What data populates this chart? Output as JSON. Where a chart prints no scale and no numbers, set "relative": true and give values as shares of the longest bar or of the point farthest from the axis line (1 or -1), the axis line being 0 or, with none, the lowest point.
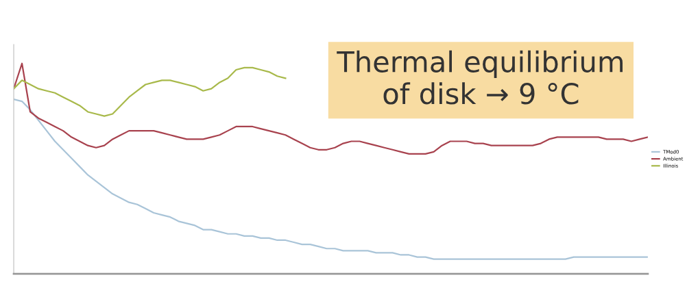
{
  "chart_data": {
    "type": "line",
    "relative": true,
    "legend": "right",
    "categories": [
      null,
      null,
      null,
      null,
      null,
      null,
      null,
      null,
      null,
      null,
      null,
      null,
      null,
      null,
      null,
      null,
      null,
      null,
      null,
      null,
      null,
      null,
      null,
      null,
      null,
      null,
      null,
      null,
      null,
      null,
      null,
      null,
      null,
      null,
      null,
      null,
      null,
      null,
      null,
      null,
      null,
      null,
      null,
      null,
      null,
      null,
      null,
      null,
      null,
      null,
      null,
      null,
      null,
      null,
      null,
      null,
      null,
      null,
      null,
      null,
      null,
      null,
      null,
      null,
      null,
      null,
      null,
      null,
      null,
      null,
      null,
      null,
      null,
      null,
      null,
      null,
      null,
      null
    ],
    "series": [
      {
        "name": "TMod0",
        "color": "#a9c4d8",
        "values": [
          0.83,
          0.82,
          0.78,
          0.73,
          0.68,
          0.63,
          0.59,
          0.55,
          0.51,
          0.47,
          0.44,
          0.41,
          0.38,
          0.36,
          0.34,
          0.33,
          0.31,
          0.29,
          0.28,
          0.27,
          0.25,
          0.24,
          0.23,
          0.21,
          0.21,
          0.2,
          0.19,
          0.19,
          0.18,
          0.18,
          0.17,
          0.17,
          0.16,
          0.16,
          0.15,
          0.14,
          0.14,
          0.13,
          0.12,
          0.12,
          0.11,
          0.11,
          0.11,
          0.11,
          0.1,
          0.1,
          0.1,
          0.09,
          0.09,
          0.08,
          0.08,
          0.07,
          0.07,
          0.07,
          0.07,
          0.07,
          0.07,
          0.07,
          0.07,
          0.07,
          0.07,
          0.07,
          0.07,
          0.07,
          0.07,
          0.07,
          0.07,
          0.07,
          0.08,
          0.08,
          0.08,
          0.08,
          0.08,
          0.08,
          0.08,
          0.08,
          0.08,
          0.08
        ]
      },
      {
        "name": "Ambient",
        "color": "#a8424e",
        "values": [
          0.88,
          1,
          0.77,
          0.74,
          0.72,
          0.7,
          0.68,
          0.65,
          0.63,
          0.61,
          0.6,
          0.61,
          0.64,
          0.66,
          0.68,
          0.68,
          0.68,
          0.68,
          0.67,
          0.66,
          0.65,
          0.64,
          0.64,
          0.64,
          0.65,
          0.66,
          0.68,
          0.7,
          0.7,
          0.7,
          0.69,
          0.68,
          0.67,
          0.66,
          0.64,
          0.62,
          0.6,
          0.59,
          0.59,
          0.6,
          0.62,
          0.63,
          0.63,
          0.62,
          0.61,
          0.6,
          0.59,
          0.58,
          0.57,
          0.57,
          0.57,
          0.58,
          0.61,
          0.63,
          0.63,
          0.63,
          0.62,
          0.62,
          0.61,
          0.61,
          0.61,
          0.61,
          0.61,
          0.61,
          0.62,
          0.64,
          0.65,
          0.65,
          0.65,
          0.65,
          0.65,
          0.65,
          0.64,
          0.64,
          0.64,
          0.63,
          0.64,
          0.65
        ]
      },
      {
        "name": "Illinois",
        "color": "#a8b94a",
        "values": [
          0.88,
          0.92,
          0.9,
          0.88,
          0.87,
          0.86,
          0.84,
          0.82,
          0.8,
          0.77,
          0.76,
          0.75,
          0.76,
          0.8,
          0.84,
          0.87,
          0.9,
          0.91,
          0.92,
          0.92,
          0.91,
          0.9,
          0.89,
          0.87,
          0.88,
          0.91,
          0.93,
          0.97,
          0.98,
          0.98,
          0.97,
          0.96,
          0.94,
          0.93,
          null,
          null,
          null,
          null,
          null,
          null,
          null,
          null,
          null,
          null,
          null,
          null,
          null,
          null,
          null,
          null,
          null,
          null,
          null,
          null,
          null,
          null,
          null,
          null,
          null,
          null,
          null,
          null,
          null,
          null,
          null,
          null,
          null,
          null,
          null,
          null,
          null,
          null,
          null,
          null,
          null,
          null,
          null,
          null
        ]
      }
    ],
    "annotations": [
      "Thermal equilibrium\nof disk → 9 °C"
    ]
  }
}
